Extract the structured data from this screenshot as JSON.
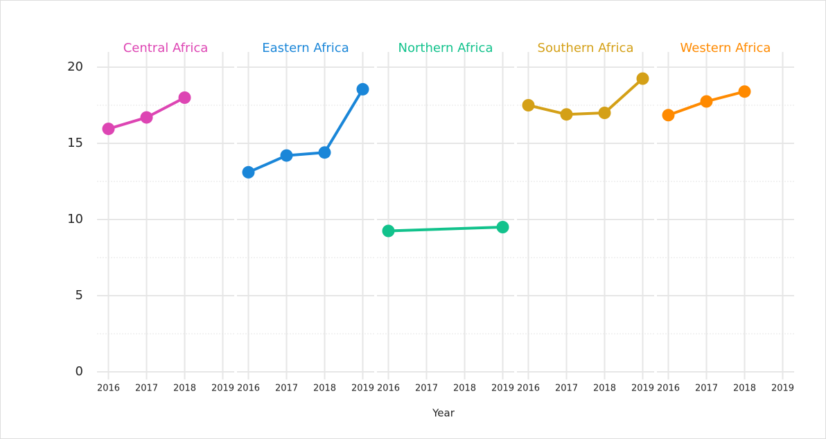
{
  "chart_data": {
    "type": "line",
    "facets": true,
    "xlabel": "Year",
    "xticks": [
      2016,
      2017,
      2018,
      2019
    ],
    "xlim": [
      2015.7,
      2019.3
    ],
    "ylim": [
      -0.5,
      21
    ],
    "yticks": [
      0,
      5,
      10,
      15,
      20
    ],
    "yminorticks": [
      2.5,
      7.5,
      12.5,
      17.5
    ],
    "grid": true,
    "series": [
      {
        "name": "Central Africa",
        "color": "#dd45b3",
        "x": [
          2016,
          2017,
          2018
        ],
        "values": [
          15.95,
          16.7,
          18.0
        ]
      },
      {
        "name": "Eastern Africa",
        "color": "#1a86d8",
        "x": [
          2016,
          2017,
          2018,
          2019
        ],
        "values": [
          13.1,
          14.2,
          14.4,
          18.55
        ]
      },
      {
        "name": "Northern Africa",
        "color": "#12c28c",
        "x": [
          2016,
          2019
        ],
        "values": [
          9.25,
          9.5
        ]
      },
      {
        "name": "Southern Africa",
        "color": "#d4a017",
        "x": [
          2016,
          2017,
          2018,
          2019
        ],
        "values": [
          17.5,
          16.9,
          17.0,
          19.25
        ]
      },
      {
        "name": "Western Africa",
        "color": "#ff8a00",
        "x": [
          2016,
          2017,
          2018
        ],
        "values": [
          16.85,
          17.75,
          18.4
        ]
      }
    ]
  }
}
